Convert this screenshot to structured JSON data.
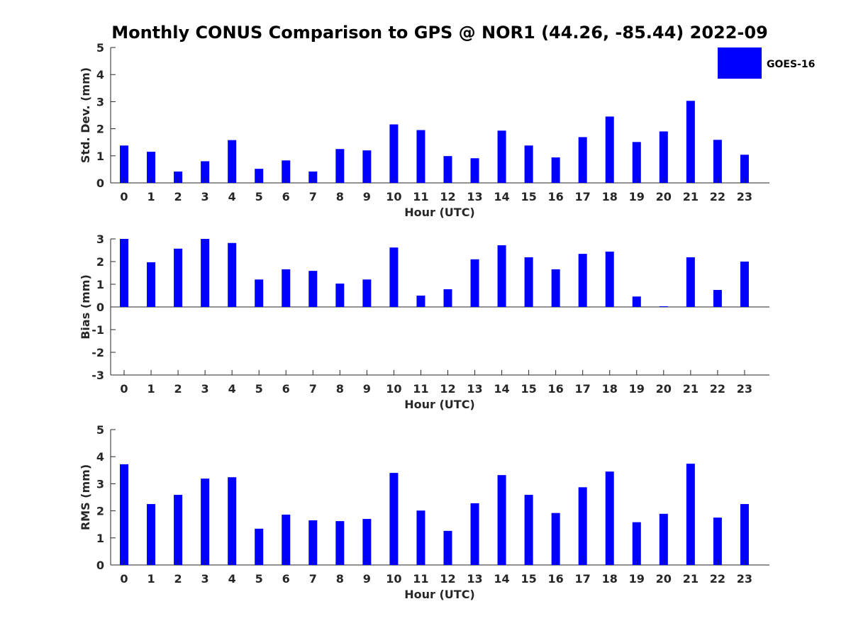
{
  "title": "Monthly CONUS Comparison to GPS @ NOR1 (44.26, -85.44) 2022-09",
  "legend": {
    "label": "GOES-16",
    "color": "#0000ff"
  },
  "chart_data": [
    {
      "type": "bar",
      "id": "std",
      "ylabel": "Std. Dev. (mm)",
      "xlabel": "Hour (UTC)",
      "ylim": [
        0,
        5
      ],
      "yticks": [
        "0",
        "1",
        "2",
        "3",
        "4",
        "5"
      ],
      "categories": [
        "0",
        "1",
        "2",
        "3",
        "4",
        "5",
        "6",
        "7",
        "8",
        "9",
        "10",
        "11",
        "12",
        "13",
        "14",
        "15",
        "16",
        "17",
        "18",
        "19",
        "20",
        "21",
        "22",
        "23"
      ],
      "series": [
        {
          "name": "GOES-16",
          "color": "#0000ff",
          "values": [
            1.38,
            1.15,
            0.42,
            0.8,
            1.58,
            0.52,
            0.83,
            0.42,
            1.25,
            1.2,
            2.16,
            1.95,
            0.99,
            0.91,
            1.93,
            1.38,
            0.94,
            1.69,
            2.45,
            1.51,
            1.9,
            3.03,
            1.59,
            1.04
          ]
        }
      ]
    },
    {
      "type": "bar",
      "id": "bias",
      "ylabel": "Bias (mm)",
      "xlabel": "Hour (UTC)",
      "ylim": [
        -3,
        3
      ],
      "yticks": [
        "-3",
        "-2",
        "-1",
        "0",
        "1",
        "2",
        "3"
      ],
      "categories": [
        "0",
        "1",
        "2",
        "3",
        "4",
        "5",
        "6",
        "7",
        "8",
        "9",
        "10",
        "11",
        "12",
        "13",
        "14",
        "15",
        "16",
        "17",
        "18",
        "19",
        "20",
        "21",
        "22",
        "23"
      ],
      "series": [
        {
          "name": "GOES-16",
          "color": "#0000ff",
          "values": [
            3.0,
            1.97,
            2.57,
            3.0,
            2.82,
            1.21,
            1.66,
            1.59,
            1.03,
            1.21,
            2.62,
            0.5,
            0.78,
            2.1,
            2.72,
            2.19,
            1.66,
            2.34,
            2.44,
            0.46,
            0.03,
            2.19,
            0.75,
            2.0
          ]
        }
      ]
    },
    {
      "type": "bar",
      "id": "rms",
      "ylabel": "RMS (mm)",
      "xlabel": "Hour (UTC)",
      "ylim": [
        0,
        5
      ],
      "yticks": [
        "0",
        "1",
        "2",
        "3",
        "4",
        "5"
      ],
      "categories": [
        "0",
        "1",
        "2",
        "3",
        "4",
        "5",
        "6",
        "7",
        "8",
        "9",
        "10",
        "11",
        "12",
        "13",
        "14",
        "15",
        "16",
        "17",
        "18",
        "19",
        "20",
        "21",
        "22",
        "23"
      ],
      "series": [
        {
          "name": "GOES-16",
          "color": "#0000ff",
          "values": [
            3.72,
            2.25,
            2.59,
            3.19,
            3.24,
            1.34,
            1.86,
            1.65,
            1.62,
            1.7,
            3.4,
            2.01,
            1.26,
            2.28,
            3.32,
            2.59,
            1.92,
            2.87,
            3.45,
            1.58,
            1.89,
            3.74,
            1.75,
            2.25
          ]
        }
      ]
    }
  ]
}
